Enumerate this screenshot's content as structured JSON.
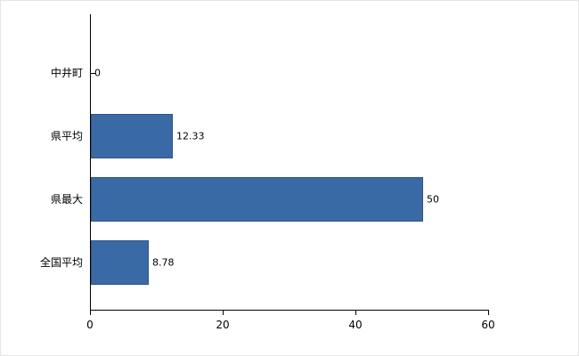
{
  "chart_data": {
    "type": "bar",
    "orientation": "horizontal",
    "title": "",
    "xlabel": "",
    "ylabel": "",
    "categories": [
      "中井町",
      "県平均",
      "県最大",
      "全国平均"
    ],
    "values": [
      0,
      12.33,
      50,
      8.78
    ],
    "value_labels": [
      "0",
      "12.33",
      "50",
      "8.78"
    ],
    "xlim": [
      0,
      60
    ],
    "xticks": [
      0,
      20,
      40,
      60
    ],
    "xtick_labels": [
      "0",
      "20",
      "40",
      "60"
    ],
    "grid": false,
    "legend": "none",
    "bar_color": "#3a6aa6",
    "axis_color": "#000000",
    "background_color": "#ffffff"
  }
}
